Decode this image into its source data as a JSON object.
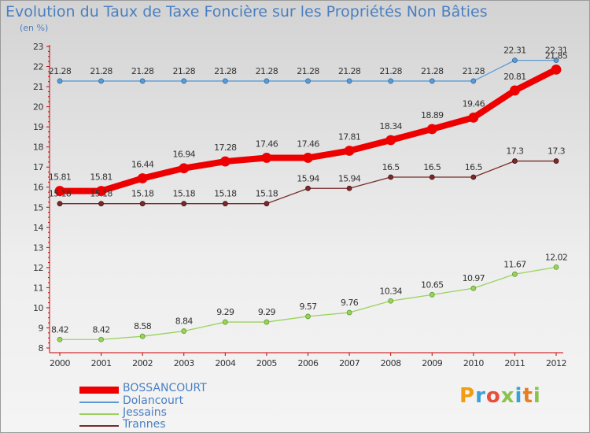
{
  "title": "Evolution du Taux de Taxe Foncière sur les Propriétés Non Bâties",
  "ylabel_unit": "(en %)",
  "logo": "Proxiti",
  "chart_data": {
    "type": "line",
    "title": "Evolution du Taux de Taxe Foncière sur les Propriétés Non Bâties",
    "ylabel": "(en %)",
    "xlabel": "",
    "x": [
      "2000",
      "2001",
      "2002",
      "2003",
      "2004",
      "2005",
      "2006",
      "2007",
      "2008",
      "2009",
      "2010",
      "2011",
      "2012"
    ],
    "ylim": [
      8,
      23
    ],
    "yticks": [
      8,
      9,
      10,
      11,
      12,
      13,
      14,
      15,
      16,
      17,
      18,
      19,
      20,
      21,
      22,
      23
    ],
    "grid": false,
    "legend_position": "bottom-left",
    "series": [
      {
        "name": "BOSSANCOURT",
        "color": "#ee0000",
        "values": [
          15.81,
          15.81,
          16.44,
          16.94,
          17.28,
          17.46,
          17.46,
          17.81,
          18.34,
          18.89,
          19.46,
          20.81,
          21.85
        ],
        "labels": [
          "15.81",
          "15.81",
          "16.44",
          "16.94",
          "17.28",
          "17.46",
          "17.46",
          "17.81",
          "18.34",
          "18.89",
          "19.46",
          "20.81",
          "21.85"
        ]
      },
      {
        "name": "Dolancourt",
        "color": "#5b9bd5",
        "values": [
          21.28,
          21.28,
          21.28,
          21.28,
          21.28,
          21.28,
          21.28,
          21.28,
          21.28,
          21.28,
          21.28,
          22.31,
          22.31
        ],
        "labels": [
          "21.28",
          "21.28",
          "21.28",
          "21.28",
          "21.28",
          "21.28",
          "21.28",
          "21.28",
          "21.28",
          "21.28",
          "21.28",
          "22.31",
          "22.31"
        ]
      },
      {
        "name": "Jessains",
        "color": "#99d35c",
        "values": [
          8.42,
          8.42,
          8.58,
          8.84,
          9.29,
          9.29,
          9.57,
          9.76,
          10.34,
          10.65,
          10.97,
          11.67,
          12.02
        ],
        "labels": [
          "8.42",
          "8.42",
          "8.58",
          "8.84",
          "9.29",
          "9.29",
          "9.57",
          "9.76",
          "10.34",
          "10.65",
          "10.97",
          "11.67",
          "12.02"
        ]
      },
      {
        "name": "Trannes",
        "color": "#7a2a2a",
        "values": [
          15.18,
          15.18,
          15.18,
          15.18,
          15.18,
          15.18,
          15.94,
          15.94,
          16.5,
          16.5,
          16.5,
          17.3,
          17.3
        ],
        "labels": [
          "15.18",
          "15.18",
          "15.18",
          "15.18",
          "15.18",
          "15.18",
          "15.94",
          "15.94",
          "16.5",
          "16.5",
          "16.5",
          "17.3",
          "17.3"
        ]
      }
    ]
  },
  "legend": [
    {
      "name": "BOSSANCOURT",
      "color": "#ee0000"
    },
    {
      "name": "Dolancourt",
      "color": "#5b9bd5"
    },
    {
      "name": "Jessains",
      "color": "#99d35c"
    },
    {
      "name": "Trannes",
      "color": "#7a2a2a"
    }
  ]
}
